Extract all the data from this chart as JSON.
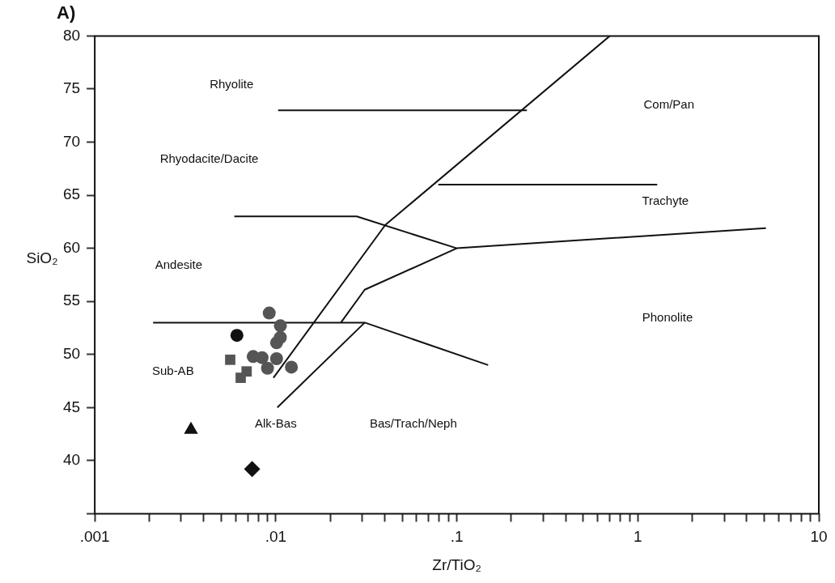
{
  "chart_data": {
    "type": "scatter",
    "title": "A)",
    "xlabel": "Zr/TiO₂",
    "ylabel": "SiO₂",
    "log": "x",
    "grid": false,
    "legend": false,
    "xlim": [
      0.001,
      10
    ],
    "ylim": [
      35,
      80
    ],
    "xticks": [
      {
        "value": 0.001,
        "label": ".001"
      },
      {
        "value": 0.002,
        "label": null
      },
      {
        "value": 0.003,
        "label": null
      },
      {
        "value": 0.004,
        "label": null
      },
      {
        "value": 0.005,
        "label": null
      },
      {
        "value": 0.006,
        "label": null
      },
      {
        "value": 0.007,
        "label": null
      },
      {
        "value": 0.008,
        "label": null
      },
      {
        "value": 0.009,
        "label": null
      },
      {
        "value": 0.01,
        "label": ".01"
      },
      {
        "value": 0.02,
        "label": null
      },
      {
        "value": 0.03,
        "label": null
      },
      {
        "value": 0.04,
        "label": null
      },
      {
        "value": 0.05,
        "label": null
      },
      {
        "value": 0.06,
        "label": null
      },
      {
        "value": 0.07,
        "label": null
      },
      {
        "value": 0.08,
        "label": null
      },
      {
        "value": 0.09,
        "label": null
      },
      {
        "value": 0.1,
        "label": ".1"
      },
      {
        "value": 0.2,
        "label": null
      },
      {
        "value": 0.3,
        "label": null
      },
      {
        "value": 0.4,
        "label": null
      },
      {
        "value": 0.5,
        "label": null
      },
      {
        "value": 0.6,
        "label": null
      },
      {
        "value": 0.7,
        "label": null
      },
      {
        "value": 0.8,
        "label": null
      },
      {
        "value": 0.9,
        "label": null
      },
      1,
      {
        "value": 2,
        "label": null
      },
      {
        "value": 3,
        "label": null
      },
      {
        "value": 4,
        "label": null
      },
      {
        "value": 5,
        "label": null
      },
      {
        "value": 6,
        "label": null
      },
      {
        "value": 7,
        "label": null
      },
      {
        "value": 8,
        "label": null
      },
      {
        "value": 9,
        "label": null
      },
      10
    ],
    "yticks": [
      {
        "value": 35,
        "label": null
      },
      40,
      45,
      50,
      55,
      60,
      65,
      70,
      75,
      80
    ],
    "series": [
      {
        "type": "scatter",
        "color": "#555555",
        "marker": "circle",
        "x": [
          0.0092,
          0.0106,
          0.0106,
          0.0101,
          0.0075,
          0.0084,
          0.0101,
          0.009,
          0.0122
        ],
        "values": [
          53.9,
          52.7,
          51.6,
          51.1,
          49.8,
          49.7,
          49.6,
          48.7,
          48.8
        ]
      },
      {
        "type": "scatter",
        "color": "#111111",
        "marker": "circle",
        "x": [
          0.0061
        ],
        "values": [
          51.8
        ]
      },
      {
        "type": "scatter",
        "color": "#555555",
        "marker": "square",
        "x": [
          0.0056,
          0.0069,
          0.0064
        ],
        "values": [
          49.5,
          48.4,
          47.8
        ]
      },
      {
        "type": "scatter",
        "color": "#111111",
        "marker": "triangle",
        "x": [
          0.0034
        ],
        "values": [
          42.9
        ]
      },
      {
        "type": "scatter",
        "color": "#111111",
        "marker": "diamond",
        "x": [
          0.0074
        ],
        "values": [
          39.2
        ]
      },
      {
        "type": "line",
        "color": "#111111",
        "marker": "none",
        "x": [
          0.0103,
          0.244
        ],
        "values": [
          73,
          73
        ]
      },
      {
        "type": "line",
        "color": "#111111",
        "marker": "none",
        "x": [
          0.0097,
          0.0403,
          0.7
        ],
        "values": [
          47.8,
          62.2,
          80
        ]
      },
      {
        "type": "line",
        "color": "#111111",
        "marker": "none",
        "x": [
          0.0059,
          0.028,
          0.1,
          5.1
        ],
        "values": [
          63,
          63,
          60,
          61.9
        ]
      },
      {
        "type": "line",
        "color": "#111111",
        "marker": "none",
        "x": [
          0.079,
          1.28
        ],
        "values": [
          66,
          66
        ]
      },
      {
        "type": "line",
        "color": "#111111",
        "marker": "none",
        "x": [
          0.0229,
          0.031,
          0.1
        ],
        "values": [
          53,
          56.1,
          60
        ]
      },
      {
        "type": "line",
        "color": "#111111",
        "marker": "none",
        "x": [
          0.0021,
          0.031,
          0.149
        ],
        "values": [
          53,
          53,
          49
        ]
      },
      {
        "type": "line",
        "color": "#111111",
        "marker": "none",
        "x": [
          0.0102,
          0.031
        ],
        "values": [
          45,
          53
        ]
      }
    ],
    "annotations": [
      "Rhyolite",
      "Rhyodacite/Dacite",
      "Andesite",
      "Sub-AB",
      "Alk-Bas",
      "Bas/Trach/Neph",
      "Phonolite",
      "Trachyte",
      "Com/Pan"
    ]
  }
}
